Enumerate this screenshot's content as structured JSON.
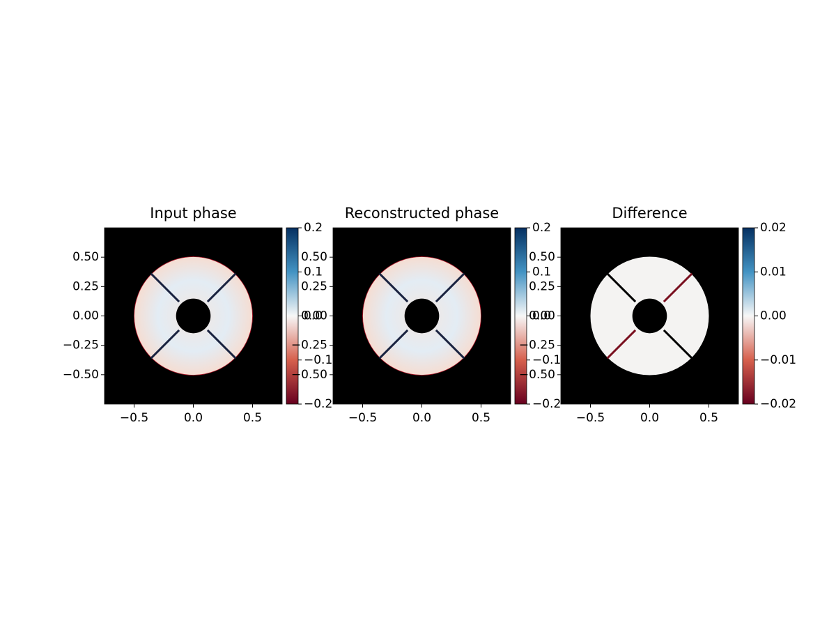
{
  "chart_data": [
    {
      "type": "image",
      "title": "Input phase",
      "xlim": [
        -0.75,
        0.75
      ],
      "ylim": [
        -0.75,
        0.75
      ],
      "xticks": [
        {
          "value": -0.5,
          "label": "−0.5"
        },
        {
          "value": 0,
          "label": "0.0"
        },
        {
          "value": 0.5,
          "label": "0.5"
        }
      ],
      "yticks": [
        {
          "value": -0.5,
          "label": "−0.50"
        },
        {
          "value": -0.25,
          "label": "−0.25"
        },
        {
          "value": 0,
          "label": "0.00"
        },
        {
          "value": 0.25,
          "label": "0.25"
        },
        {
          "value": 0.5,
          "label": "0.50"
        }
      ],
      "colorbar": {
        "lim": [
          -0.2,
          0.2
        ],
        "ticks": [
          {
            "value": -0.2,
            "label": "−0.2"
          },
          {
            "value": -0.1,
            "label": "−0.1"
          },
          {
            "value": 0,
            "label": "0.0"
          },
          {
            "value": 0.1,
            "label": "0.1"
          },
          {
            "value": 0.2,
            "label": "0.2"
          }
        ],
        "cmap": [
          "#67001f",
          "#d6604d",
          "#f7f7f7",
          "#4393c3",
          "#053061"
        ]
      }
    },
    {
      "type": "image",
      "title": "Reconstructed phase",
      "xlim": [
        -0.75,
        0.75
      ],
      "ylim": [
        -0.75,
        0.75
      ],
      "xticks": [
        {
          "value": -0.5,
          "label": "−0.5"
        },
        {
          "value": 0,
          "label": "0.0"
        },
        {
          "value": 0.5,
          "label": "0.5"
        }
      ],
      "yticks": [
        {
          "value": -0.5,
          "label": "−0.50"
        },
        {
          "value": -0.25,
          "label": "−0.25"
        },
        {
          "value": 0,
          "label": "0.00"
        },
        {
          "value": 0.25,
          "label": "0.25"
        },
        {
          "value": 0.5,
          "label": "0.50"
        }
      ],
      "colorbar": {
        "lim": [
          -0.2,
          0.2
        ],
        "ticks": [
          {
            "value": -0.2,
            "label": "−0.2"
          },
          {
            "value": -0.1,
            "label": "−0.1"
          },
          {
            "value": 0,
            "label": "0.0"
          },
          {
            "value": 0.1,
            "label": "0.1"
          },
          {
            "value": 0.2,
            "label": "0.2"
          }
        ],
        "cmap": [
          "#67001f",
          "#d6604d",
          "#f7f7f7",
          "#4393c3",
          "#053061"
        ]
      }
    },
    {
      "type": "image",
      "title": "Difference",
      "xlim": [
        -0.75,
        0.75
      ],
      "ylim": [
        -0.75,
        0.75
      ],
      "xticks": [
        {
          "value": -0.5,
          "label": "−0.5"
        },
        {
          "value": 0,
          "label": "0.0"
        },
        {
          "value": 0.5,
          "label": "0.5"
        }
      ],
      "yticks": [
        {
          "value": -0.5,
          "label": "−0.50"
        },
        {
          "value": -0.25,
          "label": "−0.25"
        },
        {
          "value": 0,
          "label": "0.00"
        },
        {
          "value": 0.25,
          "label": "0.25"
        },
        {
          "value": 0.5,
          "label": "0.50"
        }
      ],
      "colorbar": {
        "lim": [
          -0.02,
          0.02
        ],
        "ticks": [
          {
            "value": -0.02,
            "label": "−0.02"
          },
          {
            "value": -0.01,
            "label": "−0.01"
          },
          {
            "value": 0,
            "label": "0.00"
          },
          {
            "value": 0.01,
            "label": "0.01"
          },
          {
            "value": 0.02,
            "label": "0.02"
          }
        ],
        "cmap": [
          "#67001f",
          "#d6604d",
          "#f7f7f7",
          "#4393c3",
          "#053061"
        ]
      }
    }
  ]
}
